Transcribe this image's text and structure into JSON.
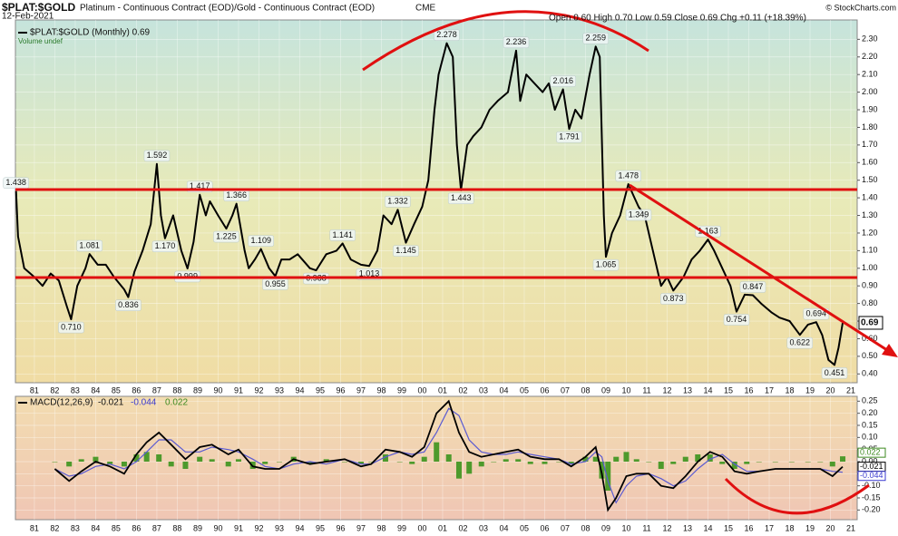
{
  "chart_data": [
    {
      "type": "line",
      "symbol": "$PLAT:$GOLD",
      "title": "Platinum - Continuous Contract (EOD)/Gold - Continuous Contract (EOD)",
      "exchange": "CME",
      "date": "12-Feb-2021",
      "quote": "Open 0.60 High 0.70 Low 0.59 Close 0.69 Chg +0.11 (+18.39%)",
      "credit": "© StockCharts.com",
      "legend": "$PLAT:$GOLD (Monthly) 0.69",
      "volume_note": "Volume undef",
      "last_value": 0.69,
      "grid": true,
      "xlim": [
        1980.57,
        2021.81
      ],
      "ylim": [
        0.35,
        2.41
      ],
      "xticks": [
        {
          "value": 1981.5,
          "label": "81"
        },
        {
          "value": 1982.5,
          "label": "82"
        },
        {
          "value": 1983.5,
          "label": "83"
        },
        {
          "value": 1984.5,
          "label": "84"
        },
        {
          "value": 1985.5,
          "label": "85"
        },
        {
          "value": 1986.5,
          "label": "86"
        },
        {
          "value": 1987.5,
          "label": "87"
        },
        {
          "value": 1988.5,
          "label": "88"
        },
        {
          "value": 1989.5,
          "label": "89"
        },
        {
          "value": 1990.5,
          "label": "90"
        },
        {
          "value": 1991.5,
          "label": "91"
        },
        {
          "value": 1992.5,
          "label": "92"
        },
        {
          "value": 1993.5,
          "label": "93"
        },
        {
          "value": 1994.5,
          "label": "94"
        },
        {
          "value": 1995.5,
          "label": "95"
        },
        {
          "value": 1996.5,
          "label": "96"
        },
        {
          "value": 1997.5,
          "label": "97"
        },
        {
          "value": 1998.5,
          "label": "98"
        },
        {
          "value": 1999.5,
          "label": "99"
        },
        {
          "value": 2000.5,
          "label": "00"
        },
        {
          "value": 2001.5,
          "label": "01"
        },
        {
          "value": 2002.5,
          "label": "02"
        },
        {
          "value": 2003.5,
          "label": "03"
        },
        {
          "value": 2004.5,
          "label": "04"
        },
        {
          "value": 2005.5,
          "label": "05"
        },
        {
          "value": 2006.5,
          "label": "06"
        },
        {
          "value": 2007.5,
          "label": "07"
        },
        {
          "value": 2008.5,
          "label": "08"
        },
        {
          "value": 2009.5,
          "label": "09"
        },
        {
          "value": 2010.5,
          "label": "10"
        },
        {
          "value": 2011.5,
          "label": "11"
        },
        {
          "value": 2012.5,
          "label": "12"
        },
        {
          "value": 2013.5,
          "label": "13"
        },
        {
          "value": 2014.5,
          "label": "14"
        },
        {
          "value": 2015.5,
          "label": "15"
        },
        {
          "value": 2016.5,
          "label": "16"
        },
        {
          "value": 2017.5,
          "label": "17"
        },
        {
          "value": 2018.5,
          "label": "18"
        },
        {
          "value": 2019.5,
          "label": "19"
        },
        {
          "value": 2020.5,
          "label": "20"
        },
        {
          "value": 2021.5,
          "label": "21"
        }
      ],
      "yticks": [
        {
          "value": 0.4,
          "label": "0.40"
        },
        {
          "value": 0.5,
          "label": "0.50"
        },
        {
          "value": 0.6,
          "label": "0.60"
        },
        {
          "value": 0.7,
          "label": "0.70"
        },
        {
          "value": 0.8,
          "label": "0.80"
        },
        {
          "value": 0.9,
          "label": "0.90"
        },
        {
          "value": 1.0,
          "label": "1.00"
        },
        {
          "value": 1.1,
          "label": "1.10"
        },
        {
          "value": 1.2,
          "label": "1.20"
        },
        {
          "value": 1.3,
          "label": "1.30"
        },
        {
          "value": 1.4,
          "label": "1.40"
        },
        {
          "value": 1.5,
          "label": "1.50"
        },
        {
          "value": 1.6,
          "label": "1.60"
        },
        {
          "value": 1.7,
          "label": "1.70"
        },
        {
          "value": 1.8,
          "label": "1.80"
        },
        {
          "value": 1.9,
          "label": "1.90"
        },
        {
          "value": 2.0,
          "label": "2.00"
        },
        {
          "value": 2.1,
          "label": "2.10"
        },
        {
          "value": 2.2,
          "label": "2.20"
        },
        {
          "value": 2.3,
          "label": "2.30"
        }
      ],
      "x": [
        1980.6,
        1980.7,
        1981.0,
        1981.5,
        1981.9,
        1982.3,
        1982.7,
        1983.1,
        1983.3,
        1983.6,
        1984.0,
        1984.2,
        1984.6,
        1985.0,
        1985.4,
        1985.9,
        1986.1,
        1986.4,
        1986.8,
        1987.2,
        1987.5,
        1987.7,
        1987.9,
        1988.3,
        1988.7,
        1989.0,
        1989.3,
        1989.6,
        1989.9,
        1990.1,
        1990.5,
        1990.9,
        1991.2,
        1991.4,
        1991.8,
        1992.0,
        1992.3,
        1992.6,
        1993.0,
        1993.3,
        1993.6,
        1994.0,
        1994.4,
        1995.0,
        1995.3,
        1995.8,
        1996.3,
        1996.6,
        1997.0,
        1997.5,
        1997.9,
        1998.3,
        1998.6,
        1999.0,
        1999.3,
        1999.7,
        2000.1,
        2000.5,
        2000.8,
        2001.1,
        2001.3,
        2001.7,
        2002.0,
        2002.2,
        2002.4,
        2002.7,
        2003.0,
        2003.4,
        2003.8,
        2004.2,
        2004.7,
        2005.1,
        2005.3,
        2005.6,
        2006.0,
        2006.4,
        2006.7,
        2007.0,
        2007.4,
        2007.7,
        2008.0,
        2008.3,
        2008.7,
        2009.0,
        2009.2,
        2009.4,
        2009.5,
        2009.8,
        2010.2,
        2010.6,
        2010.9,
        2011.1,
        2011.4,
        2011.7,
        2012.0,
        2012.2,
        2012.5,
        2012.8,
        2013.3,
        2013.7,
        2014.1,
        2014.5,
        2014.8,
        2015.2,
        2015.6,
        2015.9,
        2016.3,
        2016.7,
        2017.1,
        2017.6,
        2018.0,
        2018.5,
        2019.0,
        2019.4,
        2019.8,
        2020.1,
        2020.4,
        2020.7,
        2020.9,
        2021.1
      ],
      "series": [
        {
          "name": "$PLAT:$GOLD",
          "color": "#000000",
          "values": [
            1.438,
            1.18,
            1.0,
            0.95,
            0.9,
            0.97,
            0.93,
            0.78,
            0.71,
            0.9,
            1.0,
            1.081,
            1.02,
            1.02,
            0.95,
            0.88,
            0.836,
            0.98,
            1.1,
            1.25,
            1.592,
            1.3,
            1.17,
            1.3,
            1.1,
            0.999,
            1.15,
            1.417,
            1.3,
            1.38,
            1.3,
            1.225,
            1.3,
            1.366,
            1.1,
            1.0,
            1.05,
            1.109,
            1.0,
            0.955,
            1.05,
            1.05,
            1.08,
            1.0,
            0.988,
            1.08,
            1.1,
            1.141,
            1.05,
            1.02,
            1.013,
            1.1,
            1.3,
            1.25,
            1.332,
            1.145,
            1.25,
            1.35,
            1.5,
            1.9,
            2.1,
            2.278,
            2.2,
            1.7,
            1.443,
            1.7,
            1.75,
            1.8,
            1.9,
            1.95,
            2.0,
            2.236,
            1.95,
            2.1,
            2.05,
            2.0,
            2.05,
            1.9,
            2.016,
            1.791,
            1.9,
            1.85,
            2.1,
            2.259,
            2.2,
            1.3,
            1.065,
            1.2,
            1.3,
            1.478,
            1.4,
            1.349,
            1.3,
            1.15,
            1.0,
            0.9,
            0.95,
            0.873,
            0.95,
            1.05,
            1.1,
            1.163,
            1.1,
            1.0,
            0.9,
            0.754,
            0.85,
            0.847,
            0.8,
            0.75,
            0.72,
            0.7,
            0.622,
            0.68,
            0.694,
            0.62,
            0.48,
            0.451,
            0.55,
            0.69
          ]
        }
      ],
      "annotations": [
        {
          "x": 1980.6,
          "value": 1.438,
          "label": "1.438"
        },
        {
          "x": 1983.3,
          "value": 0.71,
          "label": "0.710"
        },
        {
          "x": 1984.2,
          "value": 1.081,
          "label": "1.081"
        },
        {
          "x": 1986.1,
          "value": 0.836,
          "label": "0.836"
        },
        {
          "x": 1987.5,
          "value": 1.592,
          "label": "1.592"
        },
        {
          "x": 1987.9,
          "value": 1.17,
          "label": "1.170"
        },
        {
          "x": 1989.0,
          "value": 0.999,
          "label": "0.999"
        },
        {
          "x": 1989.6,
          "value": 1.417,
          "label": "1.417"
        },
        {
          "x": 1990.9,
          "value": 1.225,
          "label": "1.225"
        },
        {
          "x": 1991.4,
          "value": 1.366,
          "label": "1.366"
        },
        {
          "x": 1992.6,
          "value": 1.109,
          "label": "1.109"
        },
        {
          "x": 1993.3,
          "value": 0.955,
          "label": "0.955"
        },
        {
          "x": 1995.3,
          "value": 0.988,
          "label": "0.988"
        },
        {
          "x": 1996.6,
          "value": 1.141,
          "label": "1.141"
        },
        {
          "x": 1997.9,
          "value": 1.013,
          "label": "1.013"
        },
        {
          "x": 1999.3,
          "value": 1.332,
          "label": "1.332"
        },
        {
          "x": 1999.7,
          "value": 1.145,
          "label": "1.145"
        },
        {
          "x": 2001.7,
          "value": 2.278,
          "label": "2.278"
        },
        {
          "x": 2002.4,
          "value": 1.443,
          "label": "1.443"
        },
        {
          "x": 2005.1,
          "value": 2.236,
          "label": "2.236"
        },
        {
          "x": 2007.4,
          "value": 2.016,
          "label": "2.016"
        },
        {
          "x": 2007.7,
          "value": 1.791,
          "label": "1.791"
        },
        {
          "x": 2009.0,
          "value": 2.259,
          "label": "2.259"
        },
        {
          "x": 2009.5,
          "value": 1.065,
          "label": "1.065"
        },
        {
          "x": 2010.6,
          "value": 1.478,
          "label": "1.478"
        },
        {
          "x": 2011.1,
          "value": 1.349,
          "label": "1.349"
        },
        {
          "x": 2012.8,
          "value": 0.873,
          "label": "0.873"
        },
        {
          "x": 2014.5,
          "value": 1.163,
          "label": "1.163"
        },
        {
          "x": 2015.9,
          "value": 0.754,
          "label": "0.754"
        },
        {
          "x": 2016.7,
          "value": 0.847,
          "label": "0.847"
        },
        {
          "x": 2019.0,
          "value": 0.622,
          "label": "0.622"
        },
        {
          "x": 2019.8,
          "value": 0.694,
          "label": "0.694"
        },
        {
          "x": 2020.7,
          "value": 0.451,
          "label": "0.451"
        }
      ]
    },
    {
      "type": "macd",
      "label": "MACD(12,26,9)",
      "grid": true,
      "last_values": {
        "macd": -0.021,
        "signal": -0.044,
        "hist": 0.022
      },
      "xlim": [
        1980.57,
        2021.81
      ],
      "ylim": [
        -0.24,
        0.27
      ],
      "yticks": [
        {
          "value": -0.2,
          "label": "-0.20"
        },
        {
          "value": -0.15,
          "label": "-0.15"
        },
        {
          "value": -0.1,
          "label": "-0.10"
        },
        {
          "value": -0.05,
          "label": "-0.05"
        },
        {
          "value": 0,
          "label": "0.00"
        },
        {
          "value": 0.05,
          "label": "0.05"
        },
        {
          "value": 0.1,
          "label": "0.10"
        },
        {
          "value": 0.15,
          "label": "0.15"
        },
        {
          "value": 0.2,
          "label": "0.20"
        },
        {
          "value": 0.25,
          "label": "0.25"
        }
      ],
      "x": [
        1982.5,
        1983.2,
        1983.8,
        1984.5,
        1985.2,
        1985.9,
        1986.5,
        1987.0,
        1987.6,
        1988.2,
        1988.9,
        1989.6,
        1990.2,
        1991.0,
        1991.5,
        1992.2,
        1992.8,
        1993.5,
        1994.2,
        1995.0,
        1995.8,
        1996.7,
        1997.5,
        1998.0,
        1998.7,
        1999.4,
        2000.0,
        2000.6,
        2001.2,
        2001.8,
        2002.3,
        2002.8,
        2003.4,
        2004.0,
        2004.6,
        2005.2,
        2005.8,
        2006.5,
        2007.2,
        2007.8,
        2008.5,
        2009.0,
        2009.3,
        2009.6,
        2010.0,
        2010.5,
        2011.0,
        2011.6,
        2012.2,
        2012.8,
        2013.4,
        2014.0,
        2014.6,
        2015.2,
        2015.8,
        2016.4,
        2017.0,
        2017.8,
        2018.6,
        2019.4,
        2020.0,
        2020.6,
        2021.1
      ],
      "series": [
        {
          "name": "MACD",
          "color": "#000000",
          "values": [
            -0.03,
            -0.08,
            -0.04,
            0.0,
            -0.02,
            -0.05,
            0.03,
            0.08,
            0.12,
            0.07,
            0.01,
            0.06,
            0.07,
            0.03,
            0.05,
            -0.02,
            -0.03,
            -0.03,
            0.01,
            -0.01,
            0.0,
            0.01,
            -0.02,
            -0.01,
            0.05,
            0.04,
            0.02,
            0.06,
            0.2,
            0.25,
            0.12,
            0.04,
            0.02,
            0.03,
            0.04,
            0.05,
            0.02,
            0.01,
            0.01,
            -0.02,
            0.02,
            0.06,
            -0.05,
            -0.2,
            -0.15,
            -0.06,
            -0.05,
            -0.05,
            -0.1,
            -0.11,
            -0.06,
            0.0,
            0.04,
            0.02,
            -0.04,
            -0.05,
            -0.04,
            -0.03,
            -0.03,
            -0.03,
            -0.03,
            -0.06,
            -0.021
          ]
        },
        {
          "name": "Signal",
          "color": "#5a5ad2",
          "values": [
            -0.03,
            -0.06,
            -0.05,
            -0.02,
            -0.01,
            -0.03,
            0.0,
            0.04,
            0.09,
            0.09,
            0.04,
            0.04,
            0.06,
            0.05,
            0.04,
            0.01,
            -0.02,
            -0.03,
            -0.01,
            0.0,
            -0.01,
            0.01,
            -0.01,
            -0.01,
            0.02,
            0.04,
            0.03,
            0.04,
            0.12,
            0.22,
            0.19,
            0.09,
            0.04,
            0.03,
            0.03,
            0.04,
            0.03,
            0.02,
            0.01,
            -0.01,
            0.0,
            0.04,
            0.02,
            -0.08,
            -0.17,
            -0.1,
            -0.06,
            -0.05,
            -0.07,
            -0.1,
            -0.08,
            -0.03,
            0.01,
            0.03,
            -0.01,
            -0.04,
            -0.04,
            -0.03,
            -0.03,
            -0.03,
            -0.03,
            -0.04,
            -0.044
          ]
        },
        {
          "name": "Histogram",
          "color": "#4e9a2c",
          "values": [
            0,
            -0.02,
            0.01,
            0.02,
            -0.01,
            -0.02,
            0.03,
            0.04,
            0.03,
            -0.02,
            -0.03,
            0.02,
            0.01,
            -0.02,
            0.01,
            -0.03,
            -0.01,
            0,
            0.02,
            -0.01,
            0.01,
            0,
            -0.01,
            0,
            0.03,
            0,
            -0.01,
            0.02,
            0.08,
            0.03,
            -0.07,
            -0.05,
            -0.02,
            0,
            0.01,
            0.01,
            -0.01,
            -0.01,
            0,
            -0.01,
            0.02,
            0.02,
            -0.07,
            -0.12,
            0.02,
            0.04,
            0.01,
            0,
            -0.03,
            -0.01,
            0.02,
            0.03,
            0.03,
            -0.01,
            -0.03,
            -0.01,
            0,
            0,
            0,
            0,
            0,
            -0.02,
            0.022
          ]
        }
      ]
    }
  ]
}
